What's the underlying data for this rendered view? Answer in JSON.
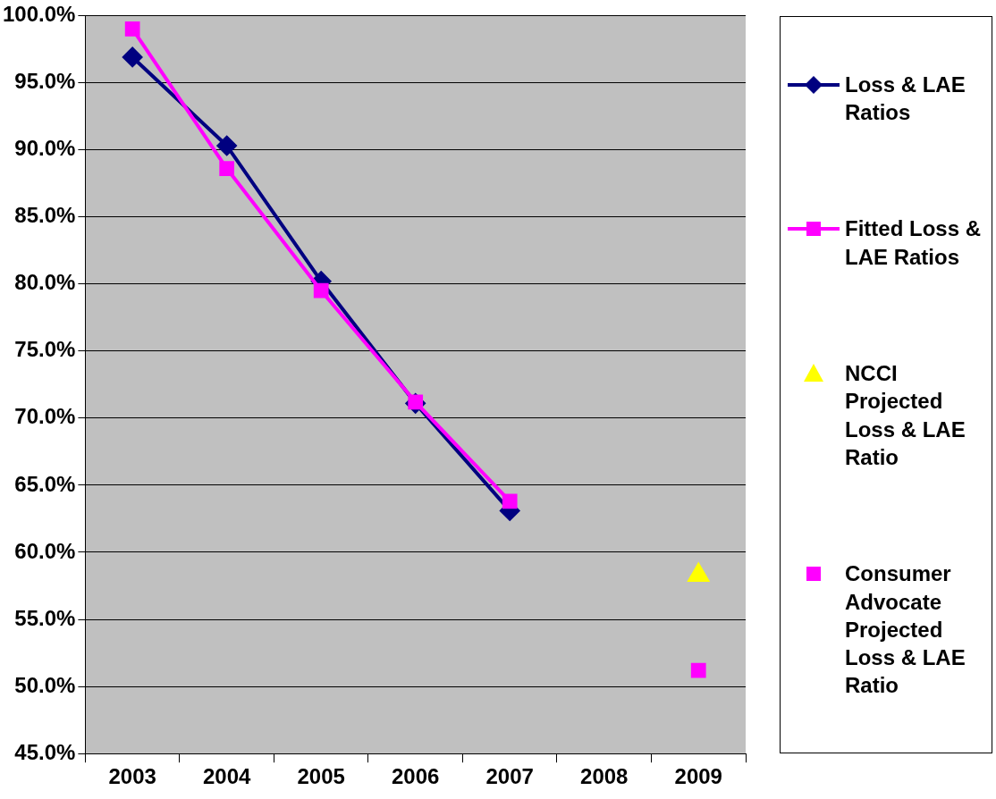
{
  "chart_data": {
    "type": "line",
    "categories": [
      "2003",
      "2004",
      "2005",
      "2006",
      "2007",
      "2008",
      "2009"
    ],
    "series": [
      {
        "name": "Loss & LAE Ratios",
        "color": "#000080",
        "type": "line",
        "marker": "diamond",
        "values": [
          96.9,
          90.3,
          80.2,
          71.1,
          63.1,
          null,
          null
        ]
      },
      {
        "name": "Fitted Loss & LAE Ratios",
        "color": "#ff00ff",
        "type": "line",
        "marker": "square",
        "values": [
          99.0,
          88.6,
          79.5,
          71.2,
          63.8,
          null,
          null
        ]
      },
      {
        "name": "NCCI Projected Loss & LAE Ratio",
        "color": "#ffff00",
        "type": "scatter",
        "marker": "triangle",
        "values": [
          null,
          null,
          null,
          null,
          null,
          null,
          58.3
        ]
      },
      {
        "name": "Consumer Advocate Projected Loss & LAE Ratio",
        "color": "#ff00ff",
        "type": "scatter",
        "marker": "square",
        "values": [
          null,
          null,
          null,
          null,
          null,
          null,
          51.2
        ]
      }
    ],
    "ylim": [
      45,
      100
    ],
    "yticks": [
      {
        "value": 45,
        "label": "45.0%"
      },
      {
        "value": 50,
        "label": "50.0%"
      },
      {
        "value": 55,
        "label": "55.0%"
      },
      {
        "value": 60,
        "label": "60.0%"
      },
      {
        "value": 65,
        "label": "65.0%"
      },
      {
        "value": 70,
        "label": "70.0%"
      },
      {
        "value": 75,
        "label": "75.0%"
      },
      {
        "value": 80,
        "label": "80.0%"
      },
      {
        "value": 85,
        "label": "85.0%"
      },
      {
        "value": 90,
        "label": "90.0%"
      },
      {
        "value": 95,
        "label": "95.0%"
      },
      {
        "value": 100,
        "label": "100.0%"
      }
    ],
    "grid": "y",
    "legend": "right",
    "line_style": "solid"
  }
}
